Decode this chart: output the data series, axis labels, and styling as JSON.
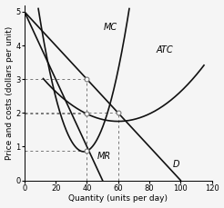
{
  "title": "",
  "xlabel": "Quantity (units per day)",
  "ylabel": "Price and costs (dollars per unit)",
  "xlim": [
    0,
    120
  ],
  "ylim": [
    0,
    5.2
  ],
  "xticks": [
    0,
    20,
    40,
    60,
    80,
    100,
    120
  ],
  "yticks": [
    0,
    1,
    2,
    3,
    4,
    5
  ],
  "background_color": "#f5f5f5",
  "curve_color": "#111111",
  "dotted_color": "#777777",
  "dot_color": "#777777",
  "label_MC": "MC",
  "label_ATC": "ATC",
  "label_MR": "MR",
  "label_D": "D",
  "label_fontsize": 7,
  "axis_fontsize": 6.5,
  "tick_fontsize": 6,
  "figsize": [
    2.46,
    2.29
  ],
  "dpi": 100,
  "lw": 1.2
}
